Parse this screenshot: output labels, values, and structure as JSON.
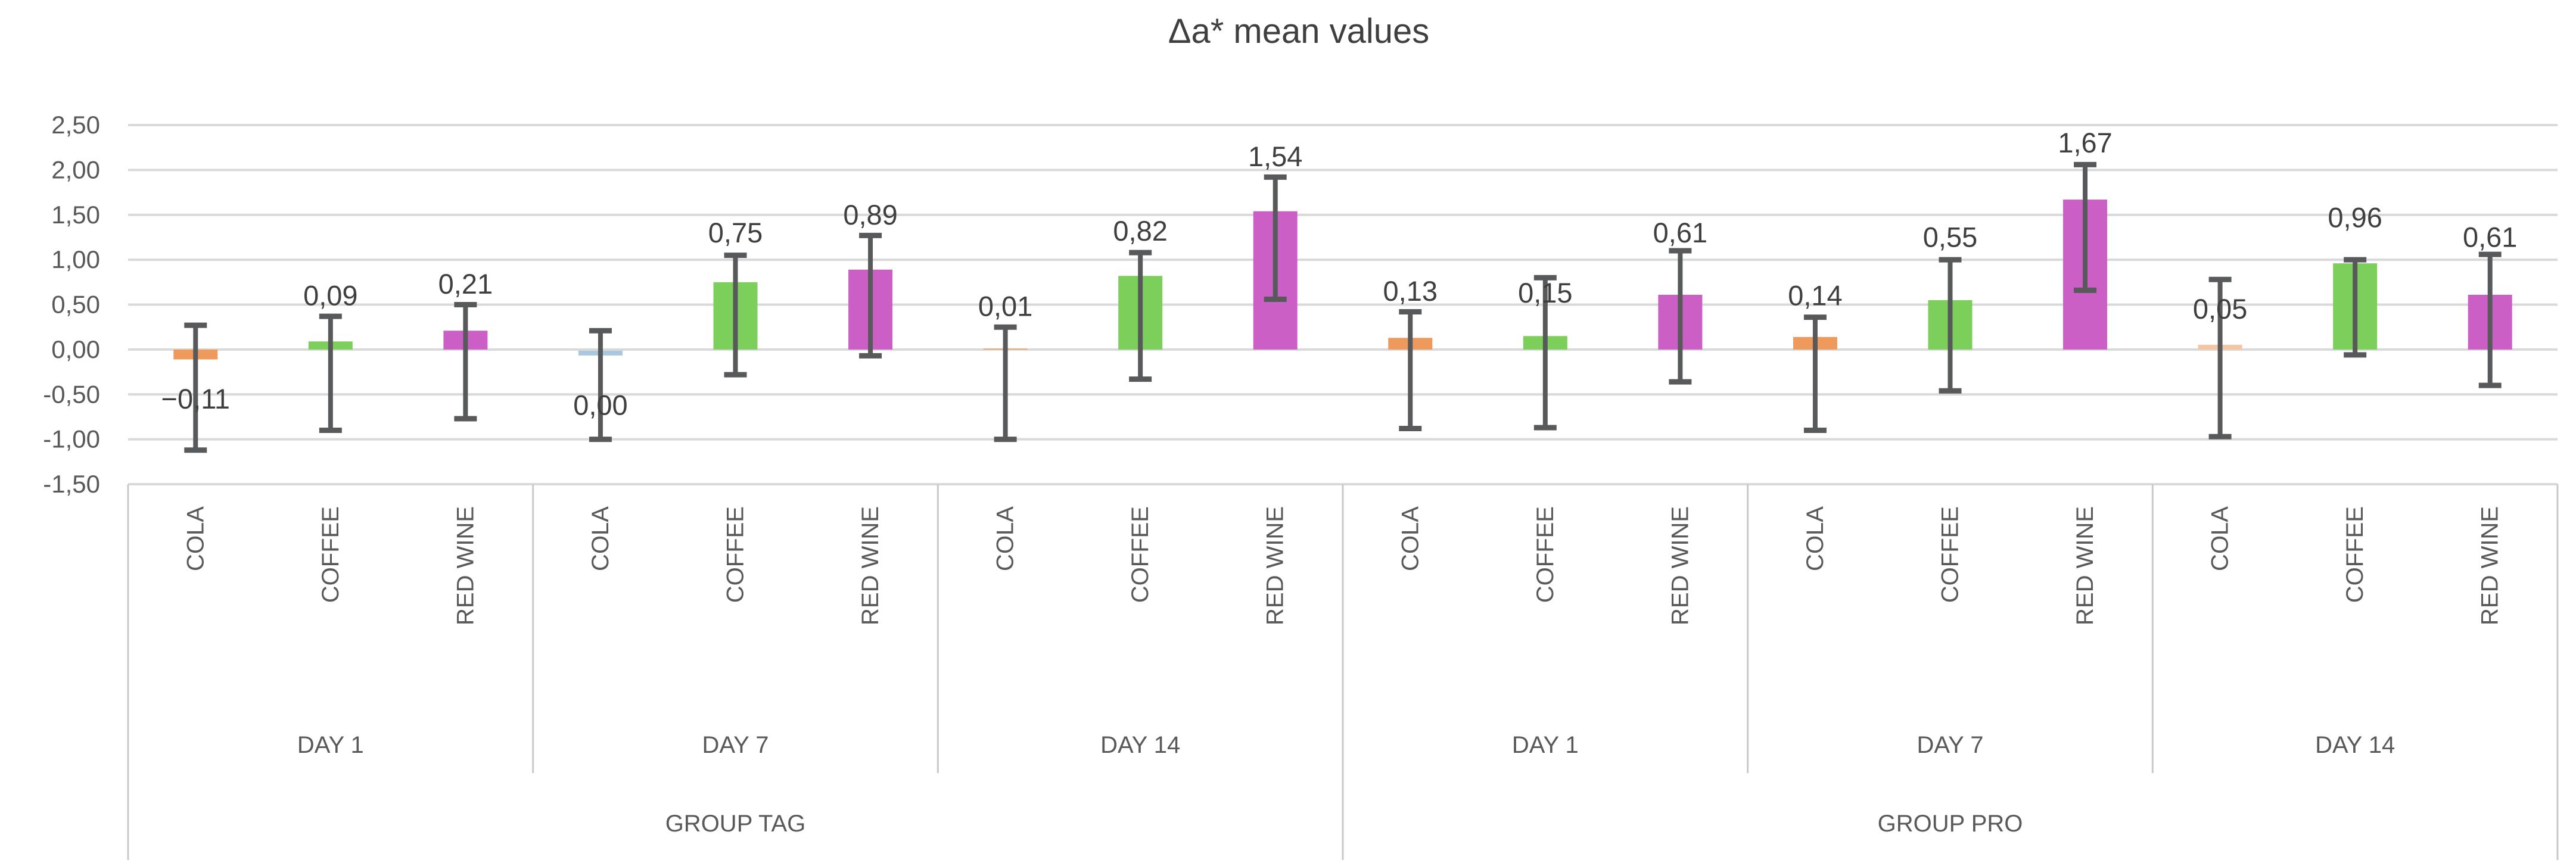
{
  "title": "Δa* mean values",
  "chart_data": {
    "type": "bar",
    "title": "Δa* mean values",
    "value_format": "comma-decimal",
    "ylabel": "",
    "ylim": [
      -1.5,
      2.5
    ],
    "y_step": 0.5,
    "y_tick_labels": [
      "2,50",
      "2,00",
      "1,50",
      "1,00",
      "0,50",
      "0,00",
      "-0,50",
      "-1,00",
      "-1,50"
    ],
    "grid": true,
    "legend": "none",
    "categories_level1": [
      "COLA",
      "COFFEE",
      "RED WINE"
    ],
    "categories_level2": [
      "DAY 1",
      "DAY 7",
      "DAY 14"
    ],
    "categories_level3": [
      "GROUP TAG",
      "GROUP PRO"
    ],
    "series_colors": {
      "COLA": "#EF9A5D",
      "COFFEE": "#7CCF5B",
      "RED WINE": "#CC5FC6"
    },
    "error_bar_color": "#58595B",
    "gridline_color": "#D9D9D9",
    "frame_color": "#C9C9C9",
    "groups": [
      {
        "label": "GROUP TAG",
        "days": [
          {
            "label": "DAY 1",
            "bars": [
              {
                "category": "COLA",
                "value": -0.11,
                "value_label": "−0,11",
                "err_lo": -1.12,
                "err_hi": 0.27,
                "label_y": -0.55
              },
              {
                "category": "COFFEE",
                "value": 0.09,
                "value_label": "0,09",
                "err_lo": -0.9,
                "err_hi": 0.37,
                "label_y": 0.6
              },
              {
                "category": "RED WINE",
                "value": 0.21,
                "value_label": "0,21",
                "err_lo": -0.77,
                "err_hi": 0.5,
                "label_y": 0.73
              }
            ]
          },
          {
            "label": "DAY 7",
            "bars": [
              {
                "category": "COLA",
                "value": 0.0,
                "value_label": "0,00",
                "err_lo": -1.0,
                "err_hi": 0.21,
                "label_y": -0.62,
                "zero_dash_color": "#A9C7DD"
              },
              {
                "category": "COFFEE",
                "value": 0.75,
                "value_label": "0,75",
                "err_lo": -0.28,
                "err_hi": 1.05,
                "label_y": 1.3
              },
              {
                "category": "RED WINE",
                "value": 0.89,
                "value_label": "0,89",
                "err_lo": -0.07,
                "err_hi": 1.27,
                "label_y": 1.5
              }
            ]
          },
          {
            "label": "DAY 14",
            "bars": [
              {
                "category": "COLA",
                "value": 0.01,
                "value_label": "0,01",
                "err_lo": -1.0,
                "err_hi": 0.25,
                "label_y": 0.48
              },
              {
                "category": "COFFEE",
                "value": 0.82,
                "value_label": "0,82",
                "err_lo": -0.33,
                "err_hi": 1.08,
                "label_y": 1.32
              },
              {
                "category": "RED WINE",
                "value": 1.54,
                "value_label": "1,54",
                "err_lo": 0.56,
                "err_hi": 1.92,
                "label_y": 2.15
              }
            ]
          }
        ]
      },
      {
        "label": "GROUP PRO",
        "days": [
          {
            "label": "DAY 1",
            "bars": [
              {
                "category": "COLA",
                "value": 0.13,
                "value_label": "0,13",
                "err_lo": -0.88,
                "err_hi": 0.42,
                "label_y": 0.65
              },
              {
                "category": "COFFEE",
                "value": 0.15,
                "value_label": "0,15",
                "err_lo": -0.87,
                "err_hi": 0.8,
                "label_y": 0.63
              },
              {
                "category": "RED WINE",
                "value": 0.61,
                "value_label": "0,61",
                "err_lo": -0.36,
                "err_hi": 1.1,
                "label_y": 1.3
              }
            ]
          },
          {
            "label": "DAY 7",
            "bars": [
              {
                "category": "COLA",
                "value": 0.14,
                "value_label": "0,14",
                "err_lo": -0.9,
                "err_hi": 0.36,
                "label_y": 0.6
              },
              {
                "category": "COFFEE",
                "value": 0.55,
                "value_label": "0,55",
                "err_lo": -0.46,
                "err_hi": 1.0,
                "label_y": 1.25
              },
              {
                "category": "RED WINE",
                "value": 1.67,
                "value_label": "1,67",
                "err_lo": 0.66,
                "err_hi": 2.06,
                "label_y": 2.3
              }
            ]
          },
          {
            "label": "DAY 14",
            "bars": [
              {
                "category": "COLA",
                "value": 0.05,
                "value_label": "0,05",
                "err_lo": -0.97,
                "err_hi": 0.78,
                "label_y": 0.45,
                "zero_dash_color": "#F6C6A2"
              },
              {
                "category": "COFFEE",
                "value": 0.96,
                "value_label": "0,96",
                "err_lo": -0.06,
                "err_hi": 1.0,
                "label_y": 1.47
              },
              {
                "category": "RED WINE",
                "value": 0.61,
                "value_label": "0,61",
                "err_lo": -0.4,
                "err_hi": 1.06,
                "label_y": 1.25
              }
            ]
          }
        ]
      }
    ]
  }
}
